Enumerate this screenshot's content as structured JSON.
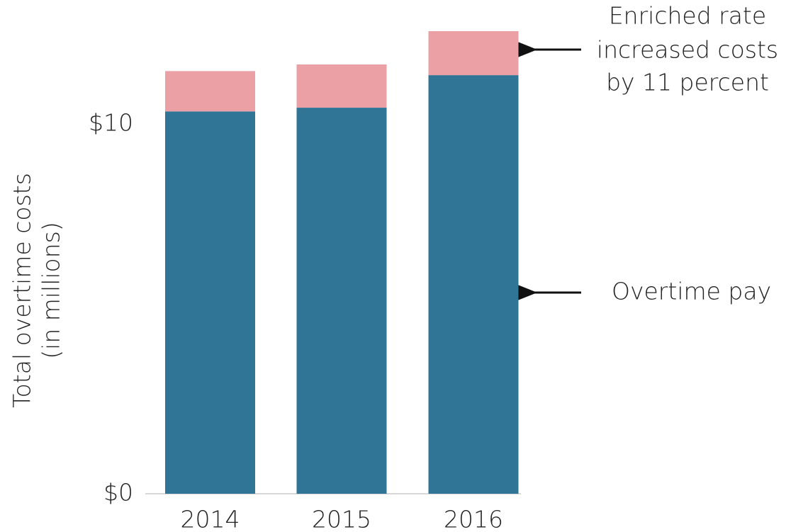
{
  "chart_data": {
    "type": "stacked_bar",
    "categories": [
      "2014",
      "2015",
      "2016"
    ],
    "series": [
      {
        "name": "Overtime pay",
        "color": "#307596",
        "values": [
          10.34,
          10.44,
          11.32
        ]
      },
      {
        "color": "#eba0a6",
        "values": [
          1.09,
          1.17,
          1.19
        ]
      }
    ],
    "y_label": [
      "Total overtime costs",
      "(in millions)"
    ],
    "annotations": [
      "Enriched rate",
      "increased costs",
      "by 11 percent"
    ],
    "ylim": [
      0,
      12.6
    ],
    "yticks": [
      {
        "value": 0,
        "label": "$0"
      },
      {
        "value": 10,
        "label": "$10"
      }
    ],
    "grid": false
  }
}
